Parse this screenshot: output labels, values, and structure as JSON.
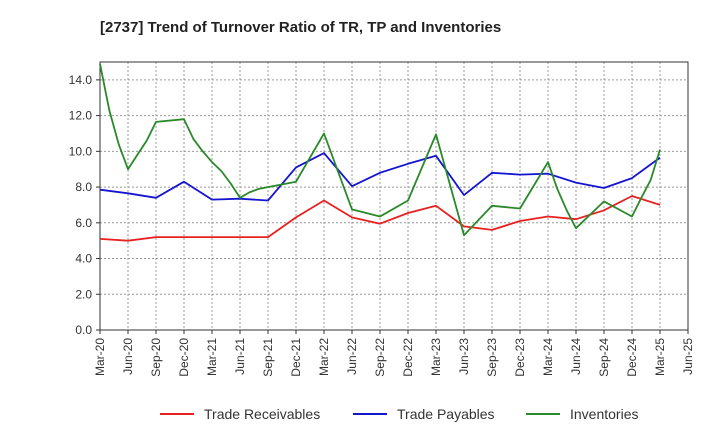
{
  "chart_data": {
    "type": "line",
    "title": "[2737]  Trend of Turnover Ratio of TR, TP and Inventories",
    "xlabel": "",
    "ylabel": "",
    "ylim": [
      0,
      15
    ],
    "yticks": [
      "0.0",
      "2.0",
      "4.0",
      "6.0",
      "8.0",
      "10.0",
      "12.0",
      "14.0"
    ],
    "ytick_values": [
      0,
      2,
      4,
      6,
      8,
      10,
      12,
      14
    ],
    "x_tick_labels": [
      "Mar-20",
      "Jun-20",
      "Sep-20",
      "Dec-20",
      "Mar-21",
      "Jun-21",
      "Sep-21",
      "Dec-21",
      "Mar-22",
      "Jun-22",
      "Sep-22",
      "Dec-22",
      "Mar-23",
      "Jun-23",
      "Sep-23",
      "Dec-23",
      "Mar-24",
      "Jun-24",
      "Sep-24",
      "Dec-24",
      "Mar-25",
      "Jun-25"
    ],
    "grid": true,
    "legend_position": "bottom",
    "series": [
      {
        "name": "Trade Receivables",
        "color": "#e8201f",
        "x": [
          "Mar-20",
          "Jun-20",
          "Sep-20",
          "Dec-20",
          "Mar-21",
          "Jun-21",
          "Sep-21",
          "Dec-21",
          "Mar-22",
          "Jun-22",
          "Sep-22",
          "Dec-22",
          "Mar-23",
          "Jun-23",
          "Sep-23",
          "Dec-23",
          "Mar-24",
          "Jun-24",
          "Sep-24",
          "Dec-24",
          "Mar-25"
        ],
        "values": [
          5.1,
          5.0,
          5.2,
          5.2,
          5.2,
          5.2,
          5.2,
          6.3,
          7.25,
          6.3,
          5.95,
          6.55,
          6.95,
          5.8,
          5.6,
          6.1,
          6.35,
          6.2,
          6.7,
          7.5,
          7.0
        ]
      },
      {
        "name": "Trade Payables",
        "color": "#1515d0",
        "x": [
          "Mar-20",
          "Jun-20",
          "Sep-20",
          "Dec-20",
          "Mar-21",
          "Jun-21",
          "Sep-21",
          "Dec-21",
          "Mar-22",
          "Jun-22",
          "Sep-22",
          "Dec-22",
          "Mar-23",
          "Jun-23",
          "Sep-23",
          "Dec-23",
          "Mar-24",
          "Jun-24",
          "Sep-24",
          "Dec-24",
          "Mar-25"
        ],
        "values": [
          7.85,
          7.65,
          7.4,
          8.3,
          7.3,
          7.35,
          7.25,
          9.1,
          9.9,
          8.05,
          8.8,
          9.3,
          9.75,
          7.55,
          8.8,
          8.7,
          8.75,
          8.25,
          7.95,
          8.5,
          9.65
        ]
      },
      {
        "name": "Inventories",
        "color": "#2a8a2a",
        "x": [
          "Mar-20",
          "Apr-20",
          "May-20",
          "Jun-20",
          "Jul-20",
          "Aug-20",
          "Sep-20",
          "Dec-20",
          "Jan-21",
          "Feb-21",
          "Mar-21",
          "Apr-21",
          "May-21",
          "Jun-21",
          "Jul-21",
          "Aug-21",
          "Sep-21",
          "Dec-21",
          "Mar-22",
          "Jun-22",
          "Sep-22",
          "Dec-22",
          "Mar-23",
          "Jun-23",
          "Sep-23",
          "Dec-23",
          "Mar-24",
          "Apr-24",
          "May-24",
          "Jun-24",
          "Sep-24",
          "Dec-24",
          "Jan-25",
          "Feb-25",
          "Mar-25"
        ],
        "values": [
          14.9,
          12.3,
          10.4,
          9.0,
          9.8,
          10.6,
          11.65,
          11.8,
          10.7,
          10.0,
          9.4,
          8.9,
          8.2,
          7.4,
          7.7,
          7.9,
          8.0,
          8.3,
          11.0,
          6.75,
          6.35,
          7.25,
          10.95,
          5.3,
          6.95,
          6.8,
          9.4,
          7.9,
          6.7,
          5.7,
          7.2,
          6.35,
          7.4,
          8.4,
          10.1
        ]
      }
    ]
  }
}
